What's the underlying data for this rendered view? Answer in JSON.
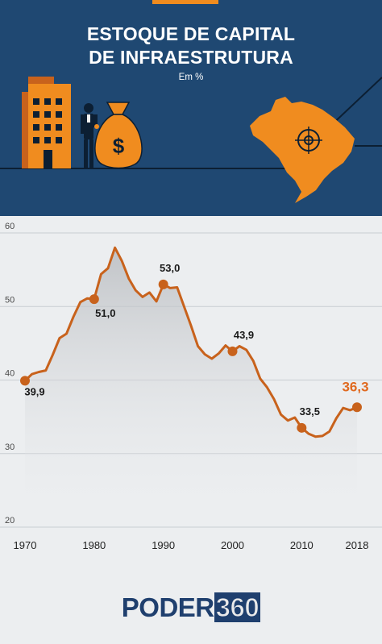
{
  "header": {
    "title_lines": [
      "ESTOQUE DE CAPITAL",
      "DE INFRAESTRUTURA"
    ],
    "subtitle": "Em %",
    "illustration_icons": [
      "building-icon",
      "businessman-icon",
      "money-bag-icon",
      "brazil-map-icon",
      "target-icon"
    ],
    "money_symbol": "$"
  },
  "colors": {
    "header_bg": "#1f4872",
    "accent": "#f08c1f",
    "line": "#c8621c",
    "highlight_label": "#e0691f",
    "label": "#1a1a1a",
    "axis_text": "#4a4a4a",
    "grid": "#c9cdd2",
    "background": "#eceef0"
  },
  "chart_data": {
    "type": "line",
    "title": "",
    "xlabel": "",
    "ylabel": "",
    "xlim": [
      1970,
      2018
    ],
    "ylim": [
      20,
      60
    ],
    "yticks": [
      20,
      30,
      40,
      50,
      60
    ],
    "xticks": [
      1970,
      1980,
      1990,
      2000,
      2010,
      2018
    ],
    "grid": true,
    "series": [
      {
        "x": [
          1970,
          1971,
          1972,
          1973,
          1974,
          1975,
          1976,
          1977,
          1978,
          1979,
          1980,
          1981,
          1982,
          1983,
          1984,
          1985,
          1986,
          1987,
          1988,
          1989,
          1990,
          1991,
          1992,
          1993,
          1994,
          1995,
          1996,
          1997,
          1998,
          1999,
          2000,
          2001,
          2002,
          2003,
          2004,
          2005,
          2006,
          2007,
          2008,
          2009,
          2010,
          2011,
          2012,
          2013,
          2014,
          2015,
          2016,
          2017,
          2018
        ],
        "y": [
          39.9,
          40.8,
          41.1,
          41.3,
          43.4,
          45.7,
          46.3,
          48.6,
          50.6,
          51.1,
          51.0,
          54.4,
          55.2,
          58.0,
          56.2,
          53.8,
          52.2,
          51.3,
          51.9,
          50.7,
          53.0,
          52.5,
          52.6,
          50.0,
          47.4,
          44.6,
          43.5,
          42.9,
          43.6,
          44.7,
          43.9,
          44.6,
          44.1,
          42.6,
          40.2,
          39.0,
          37.4,
          35.3,
          34.5,
          34.9,
          33.5,
          32.7,
          32.3,
          32.4,
          33.0,
          34.8,
          36.2,
          35.9,
          36.3
        ]
      }
    ],
    "data_labels": [
      {
        "x": 1970,
        "y": 39.9,
        "text": "39,9"
      },
      {
        "x": 1980,
        "y": 51.0,
        "text": "51,0"
      },
      {
        "x": 1990,
        "y": 53.0,
        "text": "53,0"
      },
      {
        "x": 2000,
        "y": 43.9,
        "text": "43,9"
      },
      {
        "x": 2010,
        "y": 33.5,
        "text": "33,5"
      },
      {
        "x": 2018,
        "y": 36.3,
        "text": "36,3",
        "highlight": true
      }
    ]
  },
  "footer": {
    "logo_word": "PODER",
    "logo_number": "360"
  }
}
